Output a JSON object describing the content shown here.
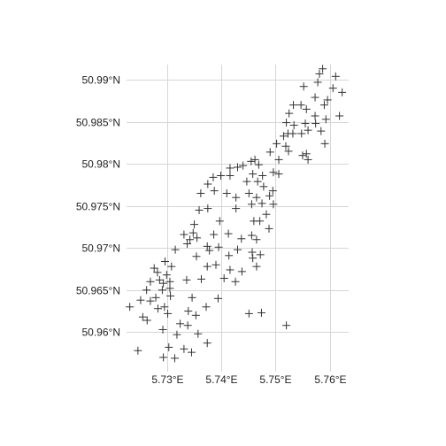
{
  "map": {
    "lon_range": [
      5.7225,
      5.7635
    ],
    "lat_range": [
      50.9553,
      50.9918
    ],
    "marker_symbol": "plus",
    "marker_color": "#333333",
    "grid_color": "#d6d6d6",
    "x_ticks": [
      {
        "value": 5.73,
        "label": "5.73°E"
      },
      {
        "value": 5.74,
        "label": "5.74°E"
      },
      {
        "value": 5.75,
        "label": "5.75°E"
      },
      {
        "value": 5.76,
        "label": "5.76°E"
      }
    ],
    "y_ticks": [
      {
        "value": 50.96,
        "label": "50.96°N"
      },
      {
        "value": 50.965,
        "label": "50.965°N"
      },
      {
        "value": 50.97,
        "label": "50.97°N"
      },
      {
        "value": 50.975,
        "label": "50.975°N"
      },
      {
        "value": 50.98,
        "label": "50.98°N"
      },
      {
        "value": 50.985,
        "label": "50.985°N"
      },
      {
        "value": 50.99,
        "label": "50.99°N"
      }
    ],
    "points": [
      [
        5.7587,
        50.9913
      ],
      [
        5.7581,
        50.9907
      ],
      [
        5.7611,
        50.9904
      ],
      [
        5.7552,
        50.9892
      ],
      [
        5.7578,
        50.9897
      ],
      [
        5.7623,
        50.9885
      ],
      [
        5.7606,
        50.989
      ],
      [
        5.7573,
        50.9879
      ],
      [
        5.7596,
        50.9876
      ],
      [
        5.759,
        50.987
      ],
      [
        5.7547,
        50.987
      ],
      [
        5.7533,
        50.987
      ],
      [
        5.7557,
        50.9865
      ],
      [
        5.7525,
        50.986
      ],
      [
        5.7618,
        50.9857
      ],
      [
        5.7573,
        50.9857
      ],
      [
        5.7593,
        50.9853
      ],
      [
        5.752,
        50.9849
      ],
      [
        5.7574,
        50.9848
      ],
      [
        5.7534,
        50.9846
      ],
      [
        5.7555,
        50.9848
      ],
      [
        5.756,
        50.984
      ],
      [
        5.7584,
        50.9839
      ],
      [
        5.7548,
        50.9836
      ],
      [
        5.7523,
        50.9836
      ],
      [
        5.7532,
        50.9836
      ],
      [
        5.7515,
        50.9833
      ],
      [
        5.7502,
        50.9824
      ],
      [
        5.7591,
        50.9824
      ],
      [
        5.7519,
        50.9821
      ],
      [
        5.7557,
        50.9812
      ],
      [
        5.755,
        50.981
      ],
      [
        5.7524,
        50.9815
      ],
      [
        5.749,
        50.9814
      ],
      [
        5.756,
        50.9805
      ],
      [
        5.7506,
        50.9805
      ],
      [
        5.7462,
        50.9805
      ],
      [
        5.7469,
        50.9799
      ],
      [
        5.7455,
        50.9803
      ],
      [
        5.743,
        50.9796
      ],
      [
        5.7416,
        50.9795
      ],
      [
        5.744,
        50.9798
      ],
      [
        5.7496,
        50.979
      ],
      [
        5.7476,
        50.9786
      ],
      [
        5.7399,
        50.9786
      ],
      [
        5.7416,
        50.9786
      ],
      [
        5.7458,
        50.9788
      ],
      [
        5.7506,
        50.9788
      ],
      [
        5.7385,
        50.9784
      ],
      [
        5.7447,
        50.9779
      ],
      [
        5.7467,
        50.9779
      ],
      [
        5.7375,
        50.9776
      ],
      [
        5.7478,
        50.9773
      ],
      [
        5.7387,
        50.9768
      ],
      [
        5.7362,
        50.9765
      ],
      [
        5.741,
        50.9765
      ],
      [
        5.7451,
        50.9765
      ],
      [
        5.7495,
        50.9768
      ],
      [
        5.7489,
        50.9762
      ],
      [
        5.7427,
        50.976
      ],
      [
        5.7465,
        50.976
      ],
      [
        5.7456,
        50.9752
      ],
      [
        5.7475,
        50.9753
      ],
      [
        5.7496,
        50.9752
      ],
      [
        5.7375,
        50.9747
      ],
      [
        5.7359,
        50.9745
      ],
      [
        5.7427,
        50.9747
      ],
      [
        5.7483,
        50.974
      ],
      [
        5.746,
        50.9732
      ],
      [
        5.7471,
        50.9732
      ],
      [
        5.735,
        50.9728
      ],
      [
        5.7397,
        50.9732
      ],
      [
        5.7488,
        50.9723
      ],
      [
        5.7348,
        50.9718
      ],
      [
        5.7355,
        50.9712
      ],
      [
        5.7386,
        50.9716
      ],
      [
        5.7331,
        50.9716
      ],
      [
        5.7413,
        50.9717
      ],
      [
        5.7456,
        50.9715
      ],
      [
        5.7437,
        50.9711
      ],
      [
        5.7342,
        50.971
      ],
      [
        5.7465,
        50.971
      ],
      [
        5.7337,
        50.9705
      ],
      [
        5.7374,
        50.9702
      ],
      [
        5.7395,
        50.9701
      ],
      [
        5.7315,
        50.9698
      ],
      [
        5.743,
        50.9698
      ],
      [
        5.7457,
        50.9695
      ],
      [
        5.7378,
        50.9697
      ],
      [
        5.7354,
        50.969
      ],
      [
        5.7414,
        50.9691
      ],
      [
        5.7458,
        50.9688
      ],
      [
        5.7472,
        50.9692
      ],
      [
        5.7296,
        50.9684
      ],
      [
        5.7308,
        50.9678
      ],
      [
        5.7276,
        50.9676
      ],
      [
        5.7299,
        50.9668
      ],
      [
        5.7282,
        50.9671
      ],
      [
        5.7374,
        50.9678
      ],
      [
        5.739,
        50.968
      ],
      [
        5.7416,
        50.9674
      ],
      [
        5.7438,
        50.9672
      ],
      [
        5.7465,
        50.9678
      ],
      [
        5.7286,
        50.9662
      ],
      [
        5.7305,
        50.966
      ],
      [
        5.7269,
        50.966
      ],
      [
        5.7293,
        50.9658
      ],
      [
        5.7336,
        50.9662
      ],
      [
        5.7305,
        50.9652
      ],
      [
        5.7405,
        50.9664
      ],
      [
        5.7426,
        50.966
      ],
      [
        5.7363,
        50.9663
      ],
      [
        5.7291,
        50.965
      ],
      [
        5.7262,
        50.965
      ],
      [
        5.7279,
        50.9641
      ],
      [
        5.7306,
        50.9643
      ],
      [
        5.7394,
        50.964
      ],
      [
        5.7346,
        50.9641
      ],
      [
        5.7231,
        50.963
      ],
      [
        5.7251,
        50.9638
      ],
      [
        5.7269,
        50.9637
      ],
      [
        5.7295,
        50.963
      ],
      [
        5.7283,
        50.9628
      ],
      [
        5.7372,
        50.963
      ],
      [
        5.7339,
        50.9625
      ],
      [
        5.7255,
        50.9618
      ],
      [
        5.7301,
        50.9622
      ],
      [
        5.7263,
        50.9614
      ],
      [
        5.7353,
        50.962
      ],
      [
        5.7451,
        50.9622
      ],
      [
        5.7474,
        50.9623
      ],
      [
        5.7324,
        50.961
      ],
      [
        5.7338,
        50.9608
      ],
      [
        5.7292,
        50.9603
      ],
      [
        5.7357,
        50.9598
      ],
      [
        5.7318,
        50.9597
      ],
      [
        5.7374,
        50.9587
      ],
      [
        5.7303,
        50.9582
      ],
      [
        5.7331,
        50.958
      ],
      [
        5.7246,
        50.9578
      ],
      [
        5.7345,
        50.9576
      ],
      [
        5.7293,
        50.957
      ],
      [
        5.7314,
        50.9569
      ],
      [
        5.752,
        50.9608
      ]
    ]
  }
}
